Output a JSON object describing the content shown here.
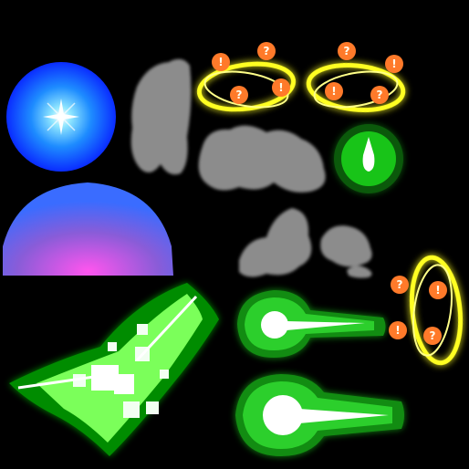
{
  "sheet": {
    "colors": {
      "background": "#000000",
      "orb_core": "#ffffff",
      "orb_mid": "#3aa8ff",
      "orb_edge": "#0a2cff",
      "dome_top": "#4a6cff",
      "dome_center": "#ff55ee",
      "smoke": "#8c8c8c",
      "green_glow": "#22ff22",
      "green_core": "#ffffff",
      "dizzy_ring": "#ffff22",
      "dizzy_badge": "#ff7a2a"
    },
    "dizzy_glyphs": {
      "a": [
        "!",
        "?",
        "?",
        "!"
      ],
      "b": [
        "?",
        "!",
        "!",
        "?"
      ],
      "c": [
        "?",
        "!",
        "!",
        "?"
      ]
    }
  }
}
